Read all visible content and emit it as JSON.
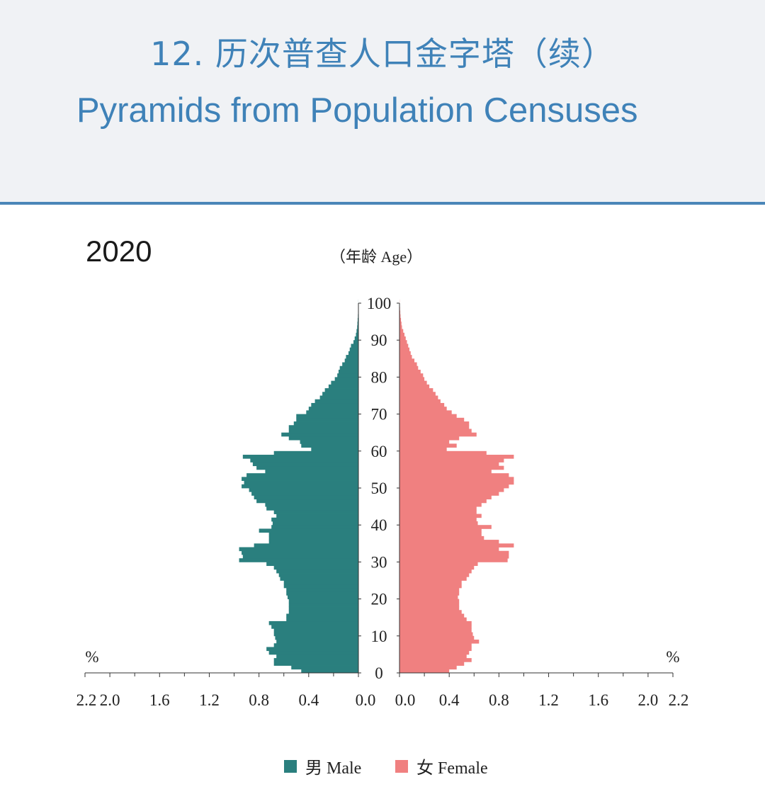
{
  "header": {
    "title_cn": "12. 历次普查人口金字塔（续）",
    "title_en": "Pyramids from Population Censuses"
  },
  "chart_data": {
    "type": "bar",
    "orientation": "horizontal-pyramid",
    "title": "2020",
    "age_axis_label": "（年龄 Age）",
    "unit_left": "%",
    "unit_right": "%",
    "age_ticks": [
      "0",
      "10",
      "20",
      "30",
      "40",
      "50",
      "60",
      "70",
      "80",
      "90",
      "100"
    ],
    "x_ticks_male": [
      "2.2",
      "2.0",
      "1.6",
      "1.2",
      "0.8",
      "0.4",
      "0.0"
    ],
    "x_ticks_female": [
      "0.0",
      "0.4",
      "0.8",
      "1.2",
      "1.6",
      "2.0",
      "2.2"
    ],
    "xlim": [
      0,
      2.2
    ],
    "ylim": [
      0,
      100
    ],
    "ages": [
      0,
      1,
      2,
      3,
      4,
      5,
      6,
      7,
      8,
      9,
      10,
      11,
      12,
      13,
      14,
      15,
      16,
      17,
      18,
      19,
      20,
      21,
      22,
      23,
      24,
      25,
      26,
      27,
      28,
      29,
      30,
      31,
      32,
      33,
      34,
      35,
      36,
      37,
      38,
      39,
      40,
      41,
      42,
      43,
      44,
      45,
      46,
      47,
      48,
      49,
      50,
      51,
      52,
      53,
      54,
      55,
      56,
      57,
      58,
      59,
      60,
      61,
      62,
      63,
      64,
      65,
      66,
      67,
      68,
      69,
      70,
      71,
      72,
      73,
      74,
      75,
      76,
      77,
      78,
      79,
      80,
      81,
      82,
      83,
      84,
      85,
      86,
      87,
      88,
      89,
      90,
      91,
      92,
      93,
      94,
      95,
      96,
      97,
      98,
      99,
      100
    ],
    "series": [
      {
        "name": "男 Male",
        "color": "#2a7f7e",
        "values": [
          0.46,
          0.54,
          0.68,
          0.68,
          0.66,
          0.72,
          0.74,
          0.68,
          0.66,
          0.67,
          0.68,
          0.68,
          0.7,
          0.72,
          0.58,
          0.58,
          0.56,
          0.56,
          0.56,
          0.56,
          0.57,
          0.58,
          0.58,
          0.6,
          0.6,
          0.63,
          0.64,
          0.66,
          0.68,
          0.74,
          0.96,
          0.93,
          0.94,
          0.96,
          0.84,
          0.72,
          0.72,
          0.72,
          0.8,
          0.7,
          0.69,
          0.7,
          0.66,
          0.68,
          0.74,
          0.75,
          0.82,
          0.84,
          0.86,
          0.88,
          0.94,
          0.92,
          0.94,
          0.9,
          0.75,
          0.82,
          0.85,
          0.87,
          0.93,
          0.68,
          0.38,
          0.46,
          0.47,
          0.56,
          0.62,
          0.56,
          0.56,
          0.52,
          0.5,
          0.5,
          0.42,
          0.4,
          0.38,
          0.35,
          0.31,
          0.29,
          0.27,
          0.24,
          0.22,
          0.19,
          0.17,
          0.16,
          0.15,
          0.13,
          0.11,
          0.1,
          0.08,
          0.07,
          0.06,
          0.04,
          0.03,
          0.02,
          0.015,
          0.01,
          0.008,
          0.006,
          0.004,
          0.003,
          0.002,
          0.001,
          0.0005
        ]
      },
      {
        "name": "女 Female",
        "color": "#f08080",
        "values": [
          0.4,
          0.46,
          0.52,
          0.58,
          0.54,
          0.56,
          0.58,
          0.58,
          0.64,
          0.6,
          0.59,
          0.58,
          0.58,
          0.58,
          0.54,
          0.52,
          0.5,
          0.48,
          0.48,
          0.48,
          0.47,
          0.48,
          0.48,
          0.5,
          0.5,
          0.54,
          0.56,
          0.58,
          0.6,
          0.63,
          0.87,
          0.88,
          0.88,
          0.8,
          0.92,
          0.8,
          0.68,
          0.66,
          0.66,
          0.74,
          0.63,
          0.62,
          0.66,
          0.62,
          0.62,
          0.66,
          0.7,
          0.74,
          0.8,
          0.84,
          0.88,
          0.92,
          0.92,
          0.88,
          0.74,
          0.84,
          0.8,
          0.84,
          0.92,
          0.7,
          0.38,
          0.46,
          0.4,
          0.48,
          0.62,
          0.58,
          0.56,
          0.56,
          0.52,
          0.46,
          0.42,
          0.38,
          0.36,
          0.33,
          0.31,
          0.29,
          0.27,
          0.24,
          0.22,
          0.2,
          0.19,
          0.17,
          0.15,
          0.14,
          0.12,
          0.1,
          0.09,
          0.08,
          0.07,
          0.06,
          0.05,
          0.04,
          0.03,
          0.02,
          0.016,
          0.012,
          0.008,
          0.006,
          0.004,
          0.002,
          0.001
        ]
      }
    ]
  },
  "legend": {
    "male_label": "男 Male",
    "female_label": "女 Female",
    "male_color": "#2a7f7e",
    "female_color": "#f08080"
  }
}
